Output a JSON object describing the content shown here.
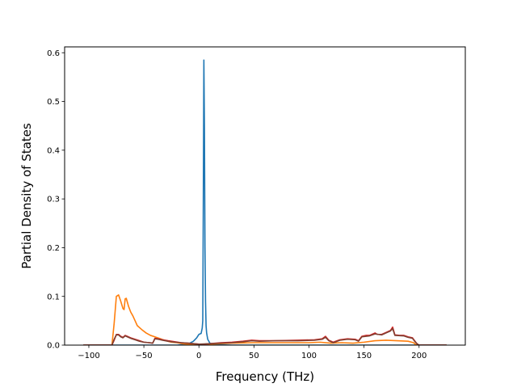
{
  "chart_data": {
    "type": "line",
    "title": "",
    "xlabel": "Frequency (THz)",
    "ylabel": "Partial Density of States",
    "xlim": [
      -122,
      242
    ],
    "ylim": [
      0,
      0.612
    ],
    "xticks": [
      -100,
      -50,
      0,
      50,
      100,
      150,
      200
    ],
    "xtick_labels": [
      "−100",
      "−50",
      "0",
      "50",
      "100",
      "150",
      "200"
    ],
    "yticks": [
      0.0,
      0.1,
      0.2,
      0.3,
      0.4,
      0.5,
      0.6
    ],
    "ytick_labels": [
      "0.0",
      "0.1",
      "0.2",
      "0.3",
      "0.4",
      "0.5",
      "0.6"
    ],
    "grid": false,
    "legend": "none",
    "series": [
      {
        "color": "#1f77b4",
        "points": [
          [
            -105,
            0
          ],
          [
            -20,
            0
          ],
          [
            -10,
            0.002
          ],
          [
            -5,
            0.008
          ],
          [
            -2,
            0.015
          ],
          [
            0,
            0.022
          ],
          [
            2,
            0.024
          ],
          [
            3,
            0.035
          ],
          [
            3.5,
            0.05
          ],
          [
            4,
            0.3
          ],
          [
            4.5,
            0.585
          ],
          [
            5,
            0.45
          ],
          [
            5.5,
            0.2
          ],
          [
            6,
            0.09
          ],
          [
            6.5,
            0.04
          ],
          [
            7,
            0.025
          ],
          [
            8,
            0.012
          ],
          [
            10,
            0.004
          ],
          [
            14,
            0.001
          ],
          [
            30,
            0
          ],
          [
            225,
            0
          ]
        ]
      },
      {
        "color": "#ff7f0e",
        "points": [
          [
            -105,
            0
          ],
          [
            -79,
            0
          ],
          [
            -77,
            0.045
          ],
          [
            -75,
            0.1
          ],
          [
            -73,
            0.103
          ],
          [
            -71,
            0.09
          ],
          [
            -69,
            0.075
          ],
          [
            -68,
            0.073
          ],
          [
            -67,
            0.095
          ],
          [
            -66,
            0.096
          ],
          [
            -64,
            0.08
          ],
          [
            -62,
            0.068
          ],
          [
            -60,
            0.06
          ],
          [
            -58,
            0.05
          ],
          [
            -56,
            0.04
          ],
          [
            -52,
            0.032
          ],
          [
            -48,
            0.025
          ],
          [
            -44,
            0.02
          ],
          [
            -40,
            0.017
          ],
          [
            -35,
            0.013
          ],
          [
            -30,
            0.009
          ],
          [
            -25,
            0.006
          ],
          [
            -20,
            0.005
          ],
          [
            -15,
            0.003
          ],
          [
            -10,
            0.002
          ],
          [
            0,
            0.001
          ],
          [
            10,
            0.002
          ],
          [
            20,
            0.003
          ],
          [
            30,
            0.004
          ],
          [
            50,
            0.005
          ],
          [
            80,
            0.005
          ],
          [
            100,
            0.005
          ],
          [
            110,
            0.006
          ],
          [
            120,
            0.004
          ],
          [
            130,
            0.005
          ],
          [
            140,
            0.004
          ],
          [
            150,
            0.006
          ],
          [
            160,
            0.009
          ],
          [
            170,
            0.01
          ],
          [
            180,
            0.009
          ],
          [
            190,
            0.008
          ],
          [
            195,
            0.005
          ],
          [
            197,
            0.001
          ],
          [
            200,
            0
          ],
          [
            225,
            0
          ]
        ]
      },
      {
        "color": "#d62728",
        "points": [
          [
            -105,
            0
          ],
          [
            -79,
            0
          ],
          [
            -77,
            0.01
          ],
          [
            -75,
            0.022
          ],
          [
            -73,
            0.022
          ],
          [
            -71,
            0.018
          ],
          [
            -69,
            0.016
          ],
          [
            -67,
            0.02
          ],
          [
            -65,
            0.018
          ],
          [
            -62,
            0.015
          ],
          [
            -58,
            0.012
          ],
          [
            -54,
            0.009
          ],
          [
            -50,
            0.006
          ],
          [
            -45,
            0.005
          ],
          [
            -42,
            0.004
          ],
          [
            -40,
            0.014
          ],
          [
            -37,
            0.013
          ],
          [
            -33,
            0.011
          ],
          [
            -28,
            0.009
          ],
          [
            -22,
            0.007
          ],
          [
            -16,
            0.005
          ],
          [
            -10,
            0.004
          ],
          [
            -5,
            0.003
          ],
          [
            0,
            0.002
          ],
          [
            5,
            0.002
          ],
          [
            10,
            0.003
          ],
          [
            20,
            0.005
          ],
          [
            30,
            0.006
          ],
          [
            40,
            0.008
          ],
          [
            48,
            0.01
          ],
          [
            55,
            0.009
          ],
          [
            70,
            0.009
          ],
          [
            90,
            0.01
          ],
          [
            105,
            0.011
          ],
          [
            112,
            0.013
          ],
          [
            115,
            0.018
          ],
          [
            118,
            0.01
          ],
          [
            122,
            0.006
          ],
          [
            128,
            0.011
          ],
          [
            135,
            0.013
          ],
          [
            142,
            0.012
          ],
          [
            145,
            0.009
          ],
          [
            148,
            0.018
          ],
          [
            152,
            0.02
          ],
          [
            155,
            0.02
          ],
          [
            160,
            0.025
          ],
          [
            162,
            0.022
          ],
          [
            166,
            0.022
          ],
          [
            170,
            0.026
          ],
          [
            174,
            0.03
          ],
          [
            176,
            0.037
          ],
          [
            178,
            0.021
          ],
          [
            182,
            0.02
          ],
          [
            186,
            0.02
          ],
          [
            190,
            0.017
          ],
          [
            194,
            0.015
          ],
          [
            196,
            0.009
          ],
          [
            198,
            0.003
          ],
          [
            200,
            0
          ],
          [
            225,
            0
          ]
        ]
      },
      {
        "color": "#7f4032",
        "points": [
          [
            -105,
            0
          ],
          [
            -79,
            0
          ],
          [
            -77,
            0.012
          ],
          [
            -75,
            0.021
          ],
          [
            -73,
            0.021
          ],
          [
            -71,
            0.017
          ],
          [
            -69,
            0.015
          ],
          [
            -67,
            0.019
          ],
          [
            -65,
            0.017
          ],
          [
            -62,
            0.014
          ],
          [
            -58,
            0.011
          ],
          [
            -54,
            0.008
          ],
          [
            -50,
            0.006
          ],
          [
            -45,
            0.005
          ],
          [
            -42,
            0.004
          ],
          [
            -40,
            0.013
          ],
          [
            -37,
            0.012
          ],
          [
            -33,
            0.01
          ],
          [
            -28,
            0.008
          ],
          [
            -22,
            0.006
          ],
          [
            -16,
            0.005
          ],
          [
            -10,
            0.004
          ],
          [
            0,
            0.002
          ],
          [
            10,
            0.003
          ],
          [
            20,
            0.004
          ],
          [
            30,
            0.005
          ],
          [
            40,
            0.007
          ],
          [
            48,
            0.009
          ],
          [
            55,
            0.008
          ],
          [
            70,
            0.009
          ],
          [
            90,
            0.009
          ],
          [
            105,
            0.01
          ],
          [
            112,
            0.012
          ],
          [
            115,
            0.016
          ],
          [
            118,
            0.009
          ],
          [
            122,
            0.005
          ],
          [
            128,
            0.01
          ],
          [
            135,
            0.012
          ],
          [
            142,
            0.011
          ],
          [
            145,
            0.008
          ],
          [
            148,
            0.017
          ],
          [
            155,
            0.019
          ],
          [
            160,
            0.023
          ],
          [
            166,
            0.021
          ],
          [
            170,
            0.025
          ],
          [
            174,
            0.029
          ],
          [
            176,
            0.034
          ],
          [
            178,
            0.02
          ],
          [
            186,
            0.019
          ],
          [
            190,
            0.016
          ],
          [
            194,
            0.014
          ],
          [
            196,
            0.008
          ],
          [
            198,
            0.003
          ],
          [
            200,
            0
          ],
          [
            225,
            0
          ]
        ]
      }
    ]
  }
}
